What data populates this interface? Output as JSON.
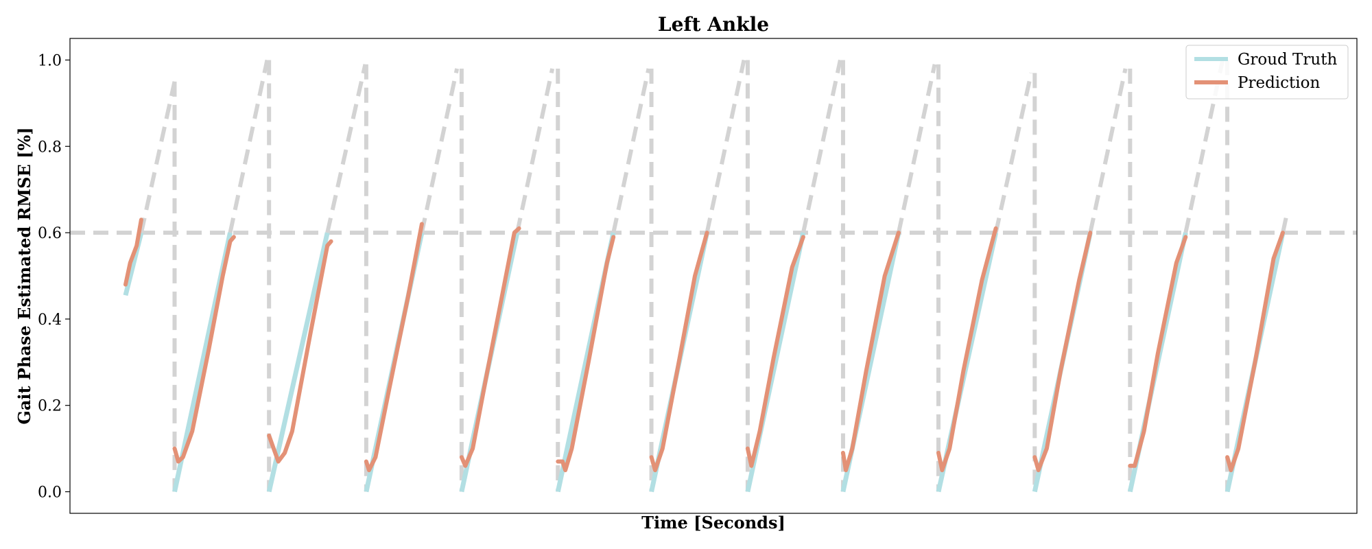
{
  "chart_data": {
    "type": "line",
    "title": "Left Ankle",
    "xlabel": "Time [Seconds]",
    "ylabel": "Gait Phase Estimated RMSE [%]",
    "ylim": [
      -0.05,
      1.05
    ],
    "xlim": [
      -0.6,
      13.3
    ],
    "yticks": [
      "0.0",
      "0.2",
      "0.4",
      "0.6",
      "0.8",
      "1.0"
    ],
    "yticks_values": [
      0.0,
      0.2,
      0.4,
      0.6,
      0.8,
      1.0
    ],
    "threshold": 0.6,
    "legend_position": "top-right",
    "legend": [
      "Groud Truth",
      "Prediction"
    ],
    "colors": {
      "ground_truth": "#b2dfe3",
      "prediction": "#e39176",
      "reference": "#d3d3d3"
    },
    "cycle_peaks": [
      0.95,
      1.0,
      0.99,
      0.98,
      0.98,
      0.98,
      1.0,
      1.0,
      0.99,
      0.97,
      0.98,
      1.0,
      0.65
    ],
    "series": [
      {
        "name": "Groud Truth",
        "segments": [
          [
            [
              0,
              0.455
            ],
            [
              0.17,
              0.6
            ]
          ],
          [
            [
              0.53,
              0.0
            ],
            [
              1.13,
              0.6
            ]
          ],
          [
            [
              1.55,
              0.0
            ],
            [
              2.18,
              0.6
            ]
          ],
          [
            [
              2.6,
              0.0
            ],
            [
              3.2,
              0.6
            ]
          ],
          [
            [
              3.63,
              0.0
            ],
            [
              4.23,
              0.6
            ]
          ],
          [
            [
              4.67,
              0.0
            ],
            [
              5.27,
              0.6
            ]
          ],
          [
            [
              5.68,
              0.0
            ],
            [
              6.28,
              0.6
            ]
          ],
          [
            [
              6.72,
              0.0
            ],
            [
              7.32,
              0.6
            ]
          ],
          [
            [
              7.75,
              0.0
            ],
            [
              8.35,
              0.6
            ]
          ],
          [
            [
              8.78,
              0.0
            ],
            [
              9.4,
              0.6
            ]
          ],
          [
            [
              9.82,
              0.0
            ],
            [
              10.42,
              0.6
            ]
          ],
          [
            [
              10.85,
              0.0
            ],
            [
              11.45,
              0.6
            ]
          ],
          [
            [
              11.9,
              0.0
            ],
            [
              12.5,
              0.6
            ]
          ]
        ]
      },
      {
        "name": "Prediction",
        "segments": [
          [
            [
              0,
              0.48
            ],
            [
              0.05,
              0.53
            ],
            [
              0.12,
              0.57
            ],
            [
              0.17,
              0.63
            ]
          ],
          [
            [
              0.53,
              0.1
            ],
            [
              0.57,
              0.07
            ],
            [
              0.62,
              0.08
            ],
            [
              0.72,
              0.14
            ],
            [
              0.9,
              0.33
            ],
            [
              1.05,
              0.5
            ],
            [
              1.13,
              0.58
            ],
            [
              1.17,
              0.59
            ]
          ],
          [
            [
              1.55,
              0.13
            ],
            [
              1.6,
              0.1
            ],
            [
              1.65,
              0.07
            ],
            [
              1.72,
              0.09
            ],
            [
              1.8,
              0.14
            ],
            [
              2.0,
              0.37
            ],
            [
              2.18,
              0.57
            ],
            [
              2.22,
              0.58
            ]
          ],
          [
            [
              2.6,
              0.07
            ],
            [
              2.63,
              0.05
            ],
            [
              2.7,
              0.08
            ],
            [
              2.85,
              0.24
            ],
            [
              3.05,
              0.45
            ],
            [
              3.2,
              0.62
            ]
          ],
          [
            [
              3.63,
              0.08
            ],
            [
              3.67,
              0.06
            ],
            [
              3.75,
              0.1
            ],
            [
              3.9,
              0.27
            ],
            [
              4.1,
              0.49
            ],
            [
              4.2,
              0.6
            ],
            [
              4.25,
              0.61
            ]
          ],
          [
            [
              4.67,
              0.07
            ],
            [
              4.72,
              0.07
            ],
            [
              4.75,
              0.05
            ],
            [
              4.82,
              0.1
            ],
            [
              5.0,
              0.3
            ],
            [
              5.2,
              0.53
            ],
            [
              5.27,
              0.59
            ]
          ],
          [
            [
              5.68,
              0.08
            ],
            [
              5.72,
              0.05
            ],
            [
              5.8,
              0.1
            ],
            [
              5.95,
              0.27
            ],
            [
              6.15,
              0.5
            ],
            [
              6.28,
              0.6
            ]
          ],
          [
            [
              6.72,
              0.1
            ],
            [
              6.76,
              0.06
            ],
            [
              6.85,
              0.14
            ],
            [
              7.0,
              0.31
            ],
            [
              7.2,
              0.52
            ],
            [
              7.32,
              0.59
            ]
          ],
          [
            [
              7.75,
              0.09
            ],
            [
              7.78,
              0.05
            ],
            [
              7.85,
              0.1
            ],
            [
              8.0,
              0.28
            ],
            [
              8.2,
              0.5
            ],
            [
              8.35,
              0.6
            ]
          ],
          [
            [
              8.78,
              0.09
            ],
            [
              8.82,
              0.05
            ],
            [
              8.9,
              0.1
            ],
            [
              9.05,
              0.28
            ],
            [
              9.25,
              0.49
            ],
            [
              9.4,
              0.61
            ]
          ],
          [
            [
              9.82,
              0.08
            ],
            [
              9.86,
              0.05
            ],
            [
              9.95,
              0.1
            ],
            [
              10.1,
              0.28
            ],
            [
              10.3,
              0.49
            ],
            [
              10.42,
              0.6
            ]
          ],
          [
            [
              10.85,
              0.06
            ],
            [
              10.9,
              0.06
            ],
            [
              11.0,
              0.14
            ],
            [
              11.15,
              0.32
            ],
            [
              11.35,
              0.53
            ],
            [
              11.45,
              0.59
            ]
          ],
          [
            [
              11.9,
              0.08
            ],
            [
              11.94,
              0.05
            ],
            [
              12.02,
              0.1
            ],
            [
              12.2,
              0.3
            ],
            [
              12.4,
              0.54
            ],
            [
              12.5,
              0.6
            ]
          ]
        ]
      }
    ]
  }
}
